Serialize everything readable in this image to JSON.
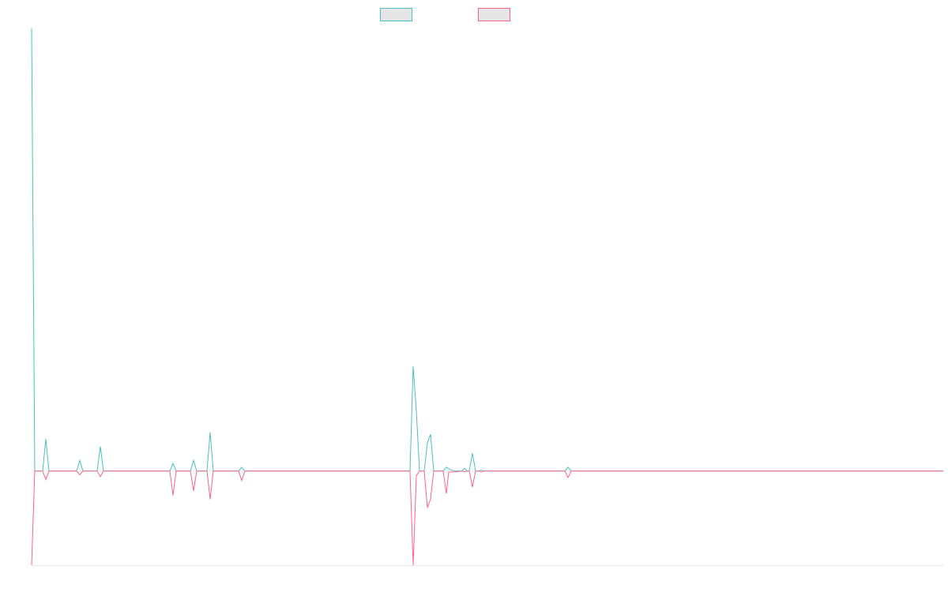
{
  "chart_data": {
    "type": "line",
    "title": "",
    "xlabel": "",
    "ylabel": "",
    "legend": {
      "placement": "top-center"
    },
    "grid": false,
    "xlim": [
      0,
      1154
    ],
    "ylim": [
      -1.0,
      4.7
    ],
    "series": [
      {
        "color": "#4bc0c0",
        "points": [
          [
            0,
            4.7
          ],
          [
            4,
            0.0
          ],
          [
            14,
            0.0
          ],
          [
            18,
            0.34
          ],
          [
            22,
            0.0
          ],
          [
            57,
            0.0
          ],
          [
            61,
            0.11
          ],
          [
            65,
            0.0
          ],
          [
            83,
            0.0
          ],
          [
            87,
            0.26
          ],
          [
            91,
            0.0
          ],
          [
            175,
            0.0
          ],
          [
            179,
            0.08
          ],
          [
            183,
            0.0
          ],
          [
            201,
            0.0
          ],
          [
            205,
            0.11
          ],
          [
            209,
            0.0
          ],
          [
            222,
            0.0
          ],
          [
            226,
            0.41
          ],
          [
            230,
            0.0
          ],
          [
            262,
            0.0
          ],
          [
            266,
            0.04
          ],
          [
            270,
            0.0
          ],
          [
            479,
            0.0
          ],
          [
            483,
            1.11
          ],
          [
            487,
            0.64
          ],
          [
            491,
            0.0
          ],
          [
            497,
            0.0
          ],
          [
            501,
            0.3
          ],
          [
            505,
            0.39
          ],
          [
            509,
            0.0
          ],
          [
            521,
            0.0
          ],
          [
            525,
            0.04
          ],
          [
            531,
            0.01
          ],
          [
            535,
            0.0
          ],
          [
            545,
            0.0
          ],
          [
            548,
            0.03
          ],
          [
            551,
            0.0
          ],
          [
            554,
            0.0
          ],
          [
            558,
            0.19
          ],
          [
            562,
            0.0
          ],
          [
            566,
            0.0
          ],
          [
            569,
            0.01
          ],
          [
            573,
            0.0
          ],
          [
            675,
            0.0
          ],
          [
            679,
            0.04
          ],
          [
            683,
            0.0
          ],
          [
            1154,
            0.0
          ]
        ]
      },
      {
        "color": "#ff6384",
        "points": [
          [
            0,
            -1.0
          ],
          [
            4,
            0.0
          ],
          [
            14,
            0.0
          ],
          [
            18,
            -0.09
          ],
          [
            22,
            0.0
          ],
          [
            57,
            0.0
          ],
          [
            61,
            -0.04
          ],
          [
            65,
            0.0
          ],
          [
            83,
            0.0
          ],
          [
            87,
            -0.06
          ],
          [
            91,
            0.0
          ],
          [
            175,
            0.0
          ],
          [
            179,
            -0.26
          ],
          [
            183,
            0.0
          ],
          [
            201,
            0.0
          ],
          [
            205,
            -0.21
          ],
          [
            209,
            0.0
          ],
          [
            222,
            0.0
          ],
          [
            226,
            -0.3
          ],
          [
            230,
            0.0
          ],
          [
            262,
            0.0
          ],
          [
            266,
            -0.1
          ],
          [
            270,
            0.0
          ],
          [
            479,
            0.0
          ],
          [
            483,
            -1.0
          ],
          [
            487,
            -0.05
          ],
          [
            491,
            0.0
          ],
          [
            497,
            0.0
          ],
          [
            501,
            -0.39
          ],
          [
            505,
            -0.3
          ],
          [
            509,
            0.0
          ],
          [
            521,
            0.0
          ],
          [
            525,
            -0.24
          ],
          [
            528,
            -0.01
          ],
          [
            535,
            -0.01
          ],
          [
            545,
            0.0
          ],
          [
            548,
            -0.01
          ],
          [
            551,
            0.0
          ],
          [
            554,
            0.0
          ],
          [
            558,
            -0.17
          ],
          [
            562,
            0.0
          ],
          [
            566,
            0.0
          ],
          [
            569,
            -0.01
          ],
          [
            573,
            0.0
          ],
          [
            675,
            0.0
          ],
          [
            679,
            -0.07
          ],
          [
            683,
            0.0
          ],
          [
            1154,
            0.0
          ]
        ]
      }
    ]
  }
}
